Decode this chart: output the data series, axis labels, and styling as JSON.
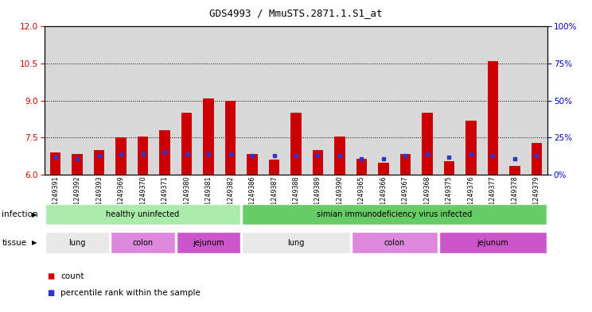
{
  "title": "GDS4993 / MmuSTS.2871.1.S1_at",
  "samples": [
    "GSM1249391",
    "GSM1249392",
    "GSM1249393",
    "GSM1249369",
    "GSM1249370",
    "GSM1249371",
    "GSM1249380",
    "GSM1249381",
    "GSM1249382",
    "GSM1249386",
    "GSM1249387",
    "GSM1249388",
    "GSM1249389",
    "GSM1249390",
    "GSM1249365",
    "GSM1249366",
    "GSM1249367",
    "GSM1249368",
    "GSM1249375",
    "GSM1249376",
    "GSM1249377",
    "GSM1249378",
    "GSM1249379"
  ],
  "counts": [
    6.9,
    6.85,
    7.0,
    7.5,
    7.55,
    7.8,
    8.5,
    9.1,
    9.0,
    6.85,
    6.6,
    8.5,
    7.0,
    7.55,
    6.65,
    6.5,
    6.85,
    8.5,
    6.55,
    8.2,
    10.6,
    6.35,
    7.3
  ],
  "percentiles": [
    12,
    11,
    13,
    14,
    14,
    15,
    14,
    14,
    14,
    13,
    13,
    13,
    13,
    13,
    11,
    11,
    13,
    14,
    12,
    14,
    13,
    11,
    13
  ],
  "ylim_left": [
    6,
    12
  ],
  "ylim_right": [
    0,
    100
  ],
  "yticks_left": [
    6,
    7.5,
    9,
    10.5,
    12
  ],
  "yticks_right": [
    0,
    25,
    50,
    75,
    100
  ],
  "bar_color": "#cc0000",
  "percentile_color": "#3333cc",
  "bg_color": "#d8d8d8",
  "infection_groups": [
    {
      "label": "healthy uninfected",
      "start": 0,
      "end": 9,
      "color": "#aaeaaa"
    },
    {
      "label": "simian immunodeficiency virus infected",
      "start": 9,
      "end": 23,
      "color": "#66cc66"
    }
  ],
  "tissue_groups": [
    {
      "label": "lung",
      "start": 0,
      "end": 3,
      "color": "#e8e8e8"
    },
    {
      "label": "colon",
      "start": 3,
      "end": 6,
      "color": "#dd88dd"
    },
    {
      "label": "jejunum",
      "start": 6,
      "end": 9,
      "color": "#cc55cc"
    },
    {
      "label": "lung",
      "start": 9,
      "end": 14,
      "color": "#e8e8e8"
    },
    {
      "label": "colon",
      "start": 14,
      "end": 18,
      "color": "#dd88dd"
    },
    {
      "label": "jejunum",
      "start": 18,
      "end": 23,
      "color": "#cc55cc"
    }
  ],
  "legend_items": [
    {
      "label": "count",
      "color": "#cc0000"
    },
    {
      "label": "percentile rank within the sample",
      "color": "#3333cc"
    }
  ]
}
